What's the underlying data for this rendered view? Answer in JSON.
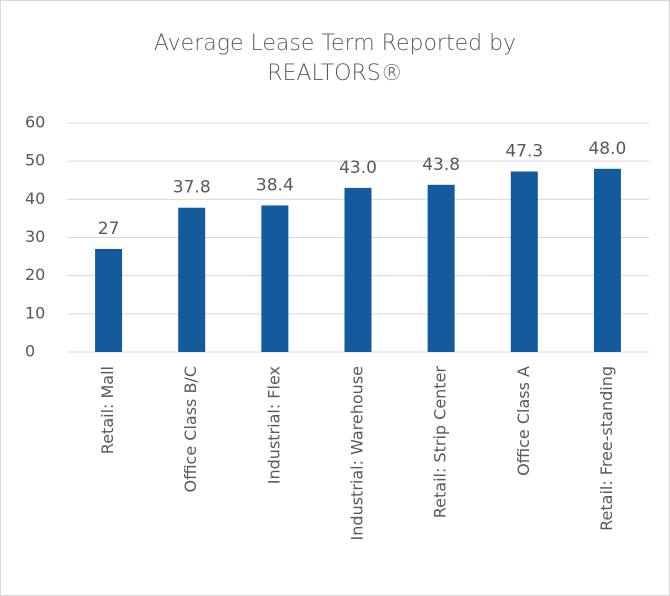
{
  "chart_data": {
    "type": "bar",
    "title": "Average Lease Term Reported by REALTORS®",
    "categories": [
      "Retail: Mall",
      "Office Class B/C",
      "Industrial: Flex",
      "Industrial: Warehouse",
      "Retail: Strip Center",
      "Office Class A",
      "Retail: Free-standing"
    ],
    "values": [
      27,
      37.8,
      38.4,
      43,
      43.8,
      47.3,
      48
    ],
    "value_labels": [
      "27",
      "37.8",
      "38.4",
      "43.0",
      "43.8",
      "47.3",
      "48.0"
    ],
    "color": "#135b9c",
    "ylim": [
      0,
      60
    ],
    "yticks": [
      0,
      10,
      20,
      30,
      40,
      50,
      60
    ],
    "grid": true
  }
}
